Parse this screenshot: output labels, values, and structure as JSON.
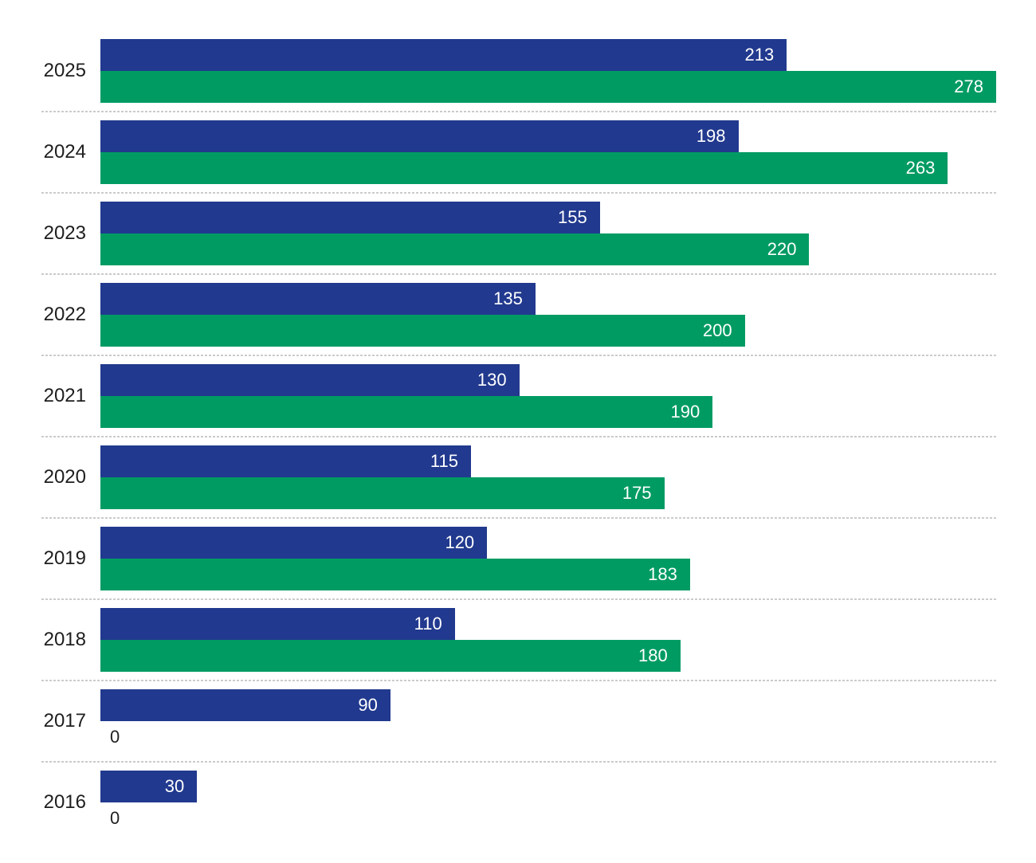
{
  "chart_data": {
    "type": "bar",
    "orientation": "horizontal",
    "title": "",
    "xlabel": "",
    "ylabel": "",
    "xlim": [
      0,
      278
    ],
    "grid": "dotted-row-separators",
    "legend": "none",
    "categories": [
      "2025",
      "2024",
      "2023",
      "2022",
      "2021",
      "2020",
      "2019",
      "2018",
      "2017",
      "2016"
    ],
    "series": [
      {
        "name": "blue-series",
        "color": "#21398E",
        "values": [
          213,
          198,
          155,
          135,
          130,
          115,
          120,
          110,
          90,
          30
        ]
      },
      {
        "name": "green-series",
        "color": "#009B63",
        "values": [
          278,
          263,
          220,
          200,
          190,
          175,
          183,
          180,
          0,
          0
        ]
      }
    ]
  },
  "style": {
    "background": "#ffffff",
    "bar_label_color": "#ffffff",
    "zero_label_color": "#212121",
    "category_label_color": "#1e1e1e",
    "separator_color": "#cbcbcb"
  }
}
